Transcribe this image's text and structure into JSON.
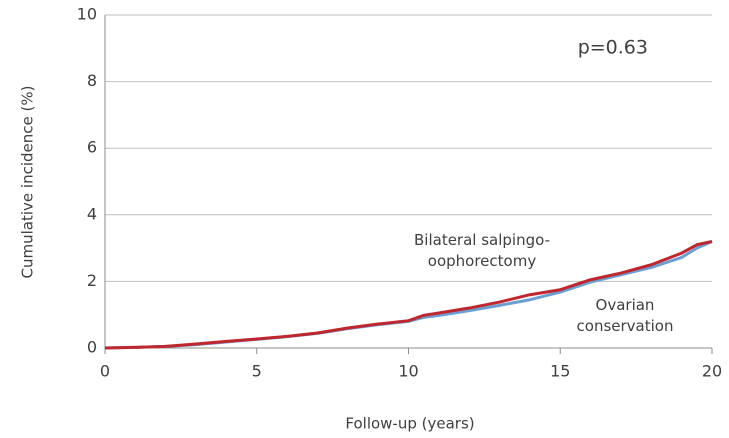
{
  "chart_data": {
    "type": "line",
    "x_label": "Follow-up (years)",
    "y_label": "Cumulative incidence (%)",
    "annotation": "p=0.63",
    "x": [
      0,
      1,
      2,
      3,
      4,
      5,
      6,
      7,
      8,
      9,
      10,
      10.5,
      11,
      12,
      13,
      14,
      15,
      16,
      17,
      18,
      19,
      19.5,
      20
    ],
    "series": [
      {
        "name": "Bilateral salpingo-oophorectomy",
        "color": "#c0262d",
        "values": [
          0,
          0.02,
          0.05,
          0.12,
          0.2,
          0.27,
          0.35,
          0.45,
          0.6,
          0.72,
          0.82,
          0.98,
          1.05,
          1.2,
          1.38,
          1.6,
          1.75,
          2.05,
          2.25,
          2.5,
          2.85,
          3.1,
          3.2
        ]
      },
      {
        "name": "Ovarian conservation",
        "color": "#6a9fd4",
        "values": [
          0,
          0.02,
          0.05,
          0.1,
          0.18,
          0.26,
          0.34,
          0.44,
          0.58,
          0.7,
          0.8,
          0.92,
          0.98,
          1.12,
          1.28,
          1.45,
          1.68,
          1.98,
          2.2,
          2.42,
          2.72,
          3.0,
          3.2
        ]
      }
    ],
    "xlim": [
      0,
      20
    ],
    "xticks": [
      0,
      5,
      10,
      15,
      20
    ],
    "ylim": [
      0,
      10
    ],
    "yticks": [
      0,
      2,
      4,
      6,
      8,
      10
    ],
    "grid": true
  }
}
